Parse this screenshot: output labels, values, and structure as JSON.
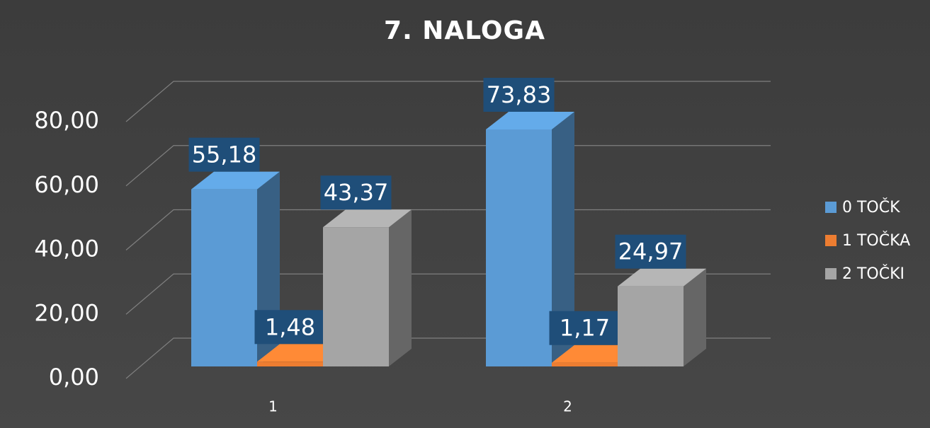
{
  "chart_data": {
    "type": "bar3d",
    "title": "7. NALOGA",
    "categories": [
      "1",
      "2"
    ],
    "series": [
      {
        "name": "0 TOČK",
        "color": "#5b9bd5",
        "values": [
          55.18,
          73.83
        ],
        "value_labels": [
          "55,18",
          "73,83"
        ]
      },
      {
        "name": "1 TOČKA",
        "color": "#ed7d31",
        "values": [
          1.48,
          1.17
        ],
        "value_labels": [
          "1,48",
          "1,17"
        ]
      },
      {
        "name": "2 TOČKI",
        "color": "#a5a5a5",
        "values": [
          43.37,
          24.97
        ],
        "value_labels": [
          "43,37",
          "24,97"
        ]
      }
    ],
    "ylim": [
      0,
      80
    ],
    "yticks": [
      {
        "value": 0,
        "label": "0,00"
      },
      {
        "value": 20,
        "label": "20,00"
      },
      {
        "value": 40,
        "label": "40,00"
      },
      {
        "value": 60,
        "label": "60,00"
      },
      {
        "value": 80,
        "label": "80,00"
      }
    ],
    "grid": true,
    "legend": "right"
  }
}
